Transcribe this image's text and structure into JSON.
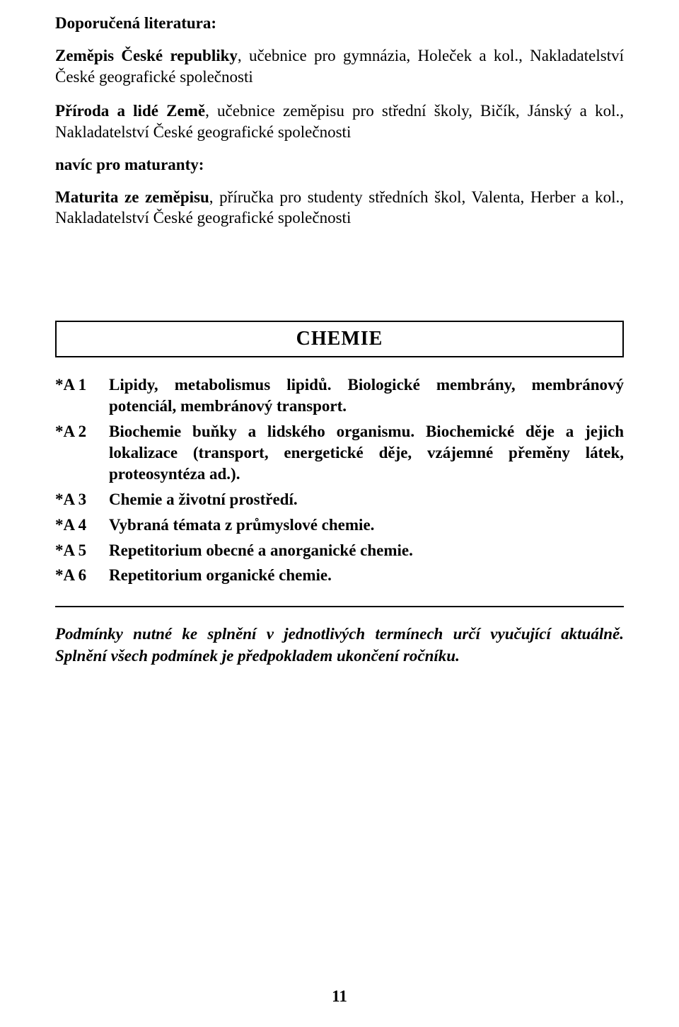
{
  "literature": {
    "heading": "Doporučená literatura:",
    "books": [
      {
        "title": "Zeměpis České republiky",
        "rest": ", učebnice pro gymnázia, Holeček a kol., Nakladatelství České geografické společnosti"
      },
      {
        "title": "Příroda a lidé Země",
        "rest": ", učebnice zeměpisu pro střední školy, Bičík, Jánský a kol., Nakladatelství České geografické společnosti"
      }
    ],
    "for_students": "navíc pro maturanty:",
    "extra_books": [
      {
        "title": "Maturita ze zeměpisu",
        "rest": ", příručka pro studenty středních škol, Valenta, Herber a kol., Nakladatelství České geografické společnosti"
      }
    ]
  },
  "chemie": {
    "title": "CHEMIE",
    "topics": [
      {
        "code": "*A 1",
        "text": "Lipidy, metabolismus lipidů. Biologické membrány, membránový potenciál, membránový transport."
      },
      {
        "code": "*A 2",
        "text": "Biochemie buňky a lidského organismu. Biochemické děje a jejich lokalizace (transport, energetické děje, vzájemné přeměny látek, proteosyntéza ad.)."
      },
      {
        "code": "*A 3",
        "text": "Chemie a životní prostředí."
      },
      {
        "code": "*A 4",
        "text": "Vybraná témata z průmyslové chemie."
      },
      {
        "code": "*A 5",
        "text": "Repetitorium obecné a anorganické chemie."
      },
      {
        "code": "*A 6",
        "text": "Repetitorium organické chemie."
      }
    ]
  },
  "conditions": "Podmínky nutné ke splnění v jednotlivých termínech určí vyučující aktuálně. Splnění všech podmínek je předpokladem ukončení ročníku.",
  "page_number": "11"
}
